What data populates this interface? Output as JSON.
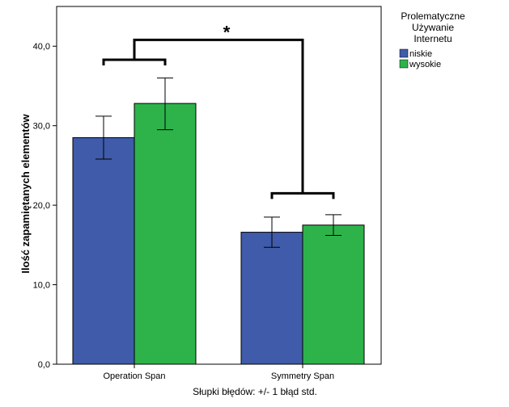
{
  "chart_data": {
    "type": "bar",
    "categories": [
      "Operation Span",
      "Symmetry Span"
    ],
    "series": [
      {
        "name": "niskie",
        "color": "#3f5ba9",
        "values": [
          28.5,
          16.6
        ],
        "err_low": [
          25.8,
          14.7
        ],
        "err_high": [
          31.2,
          18.5
        ]
      },
      {
        "name": "wysokie",
        "color": "#2db34a",
        "values": [
          32.8,
          17.5
        ],
        "err_low": [
          29.5,
          16.2
        ],
        "err_high": [
          36.0,
          18.8
        ]
      }
    ],
    "ylabel": "Ilość zapamiętanych elementów",
    "footnote": "Słupki błędów: +/- 1 błąd std.",
    "ylim": [
      0,
      45
    ],
    "yticks": [
      0,
      10,
      20,
      30,
      40
    ],
    "ytick_labels": [
      "0,0",
      "10,0",
      "20,0",
      "30,0",
      "40,0"
    ],
    "legend": {
      "title_lines": [
        "Prolematyczne",
        "Używanie",
        "Internetu"
      ],
      "position": "top-right"
    },
    "significance": {
      "label": "*",
      "within_bracket_y": [
        38.3,
        21.5
      ],
      "between_bracket_y": 40.8
    }
  }
}
